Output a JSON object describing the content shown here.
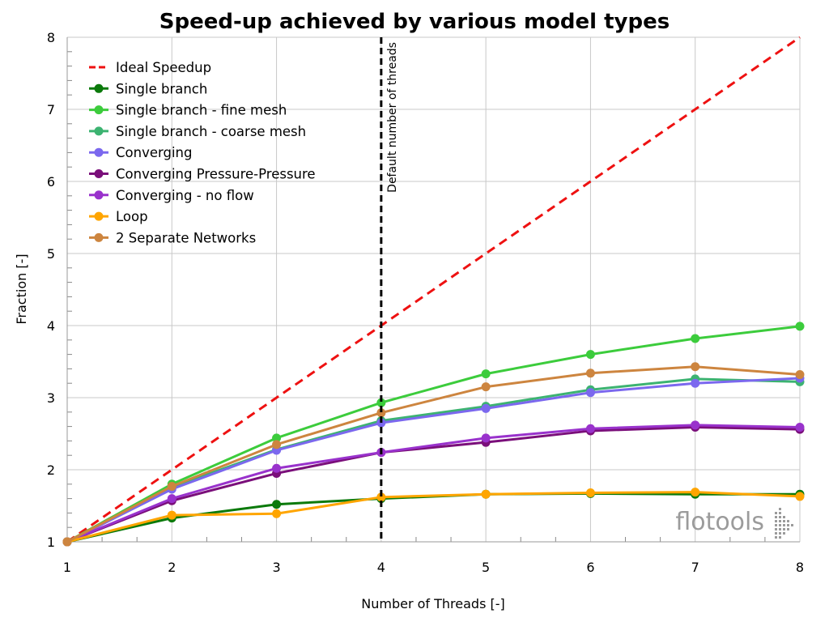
{
  "chart_data": {
    "type": "line",
    "title": "Speed-up achieved by various model types",
    "xlabel": "Number of Threads [-]",
    "ylabel": "Fraction [-]",
    "xlim": [
      1,
      8
    ],
    "ylim": [
      1,
      8
    ],
    "x_ticks": [
      1,
      2,
      3,
      4,
      5,
      6,
      7,
      8
    ],
    "y_ticks": [
      1,
      2,
      3,
      4,
      5,
      6,
      7,
      8
    ],
    "y_minor_ticks_per_major": 5,
    "grid": "on",
    "legend_position": "top-left",
    "x": [
      1,
      2,
      3,
      4,
      5,
      6,
      7,
      8
    ],
    "series": [
      {
        "name": "Ideal Speedup",
        "color": "#ee1111",
        "style": "dashed",
        "markers": false,
        "values": [
          1,
          2,
          3,
          4,
          5,
          6,
          7,
          8
        ]
      },
      {
        "name": "Single branch",
        "color": "#0b7a0b",
        "style": "solid",
        "markers": true,
        "values": [
          1,
          1.33,
          1.52,
          1.6,
          1.66,
          1.67,
          1.66,
          1.66
        ]
      },
      {
        "name": "Single branch - fine mesh",
        "color": "#3ccc3c",
        "style": "solid",
        "markers": true,
        "values": [
          1,
          1.8,
          2.44,
          2.93,
          3.33,
          3.6,
          3.82,
          3.99
        ]
      },
      {
        "name": "Single branch - coarse mesh",
        "color": "#3cb371",
        "style": "solid",
        "markers": true,
        "values": [
          1,
          1.76,
          2.28,
          2.68,
          2.88,
          3.11,
          3.26,
          3.22
        ]
      },
      {
        "name": "Converging",
        "color": "#7b68ee",
        "style": "solid",
        "markers": true,
        "values": [
          1,
          1.73,
          2.27,
          2.65,
          2.85,
          3.07,
          3.2,
          3.27
        ]
      },
      {
        "name": "Converging Pressure-Pressure",
        "color": "#7a0f7a",
        "style": "solid",
        "markers": true,
        "values": [
          1,
          1.57,
          1.95,
          2.24,
          2.38,
          2.54,
          2.59,
          2.56
        ]
      },
      {
        "name": "Converging - no flow",
        "color": "#9932cc",
        "style": "solid",
        "markers": true,
        "values": [
          1,
          1.6,
          2.02,
          2.24,
          2.44,
          2.57,
          2.62,
          2.59
        ]
      },
      {
        "name": "Loop",
        "color": "#ffa500",
        "style": "solid",
        "markers": true,
        "values": [
          1,
          1.37,
          1.39,
          1.62,
          1.66,
          1.68,
          1.69,
          1.63
        ]
      },
      {
        "name": "2 Separate Networks",
        "color": "#cd853f",
        "style": "solid",
        "markers": true,
        "values": [
          1,
          1.77,
          2.35,
          2.79,
          3.15,
          3.34,
          3.43,
          3.32
        ]
      }
    ],
    "annotations": [
      {
        "type": "vertical-line",
        "x": 4,
        "style": "dashed",
        "color": "#000000",
        "label": "Default number of threads"
      }
    ]
  },
  "watermark": {
    "text": "flotools",
    "color": "#9b9b9b"
  }
}
